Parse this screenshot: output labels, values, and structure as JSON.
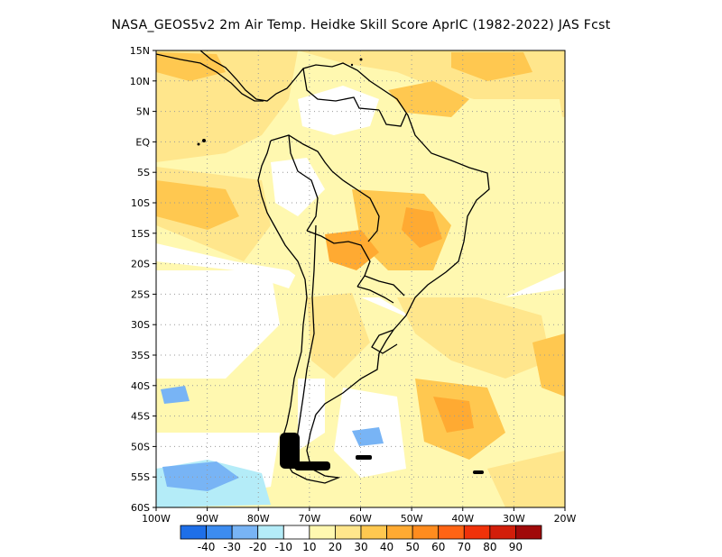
{
  "title": "NASA_GEOS5v2  2m Air Temp. Heidke Skill Score AprIC (1982-2022) JAS Fcst",
  "lat_labels": [
    "15N",
    "10N",
    "5N",
    "EQ",
    "5S",
    "10S",
    "15S",
    "20S",
    "25S",
    "30S",
    "35S",
    "40S",
    "45S",
    "50S",
    "55S",
    "60S"
  ],
  "lon_labels": [
    "100W",
    "90W",
    "80W",
    "70W",
    "60W",
    "50W",
    "40W",
    "30W",
    "20W"
  ],
  "colorbar": {
    "colors": [
      "#1e6fe8",
      "#3c8cf0",
      "#78b4f5",
      "#b4ecf8",
      "#ffffff",
      "#fff8b0",
      "#ffe68c",
      "#ffc850",
      "#ffaa32",
      "#ff8c1e",
      "#ff6414",
      "#f0320a",
      "#d21e0a",
      "#a00a0a"
    ],
    "labels": [
      "-40",
      "-30",
      "-20",
      "-10",
      "10",
      "20",
      "30",
      "40",
      "50",
      "60",
      "70",
      "80",
      "90"
    ]
  },
  "colors": {
    "land_outline": "#000000",
    "grid": "#999999"
  }
}
